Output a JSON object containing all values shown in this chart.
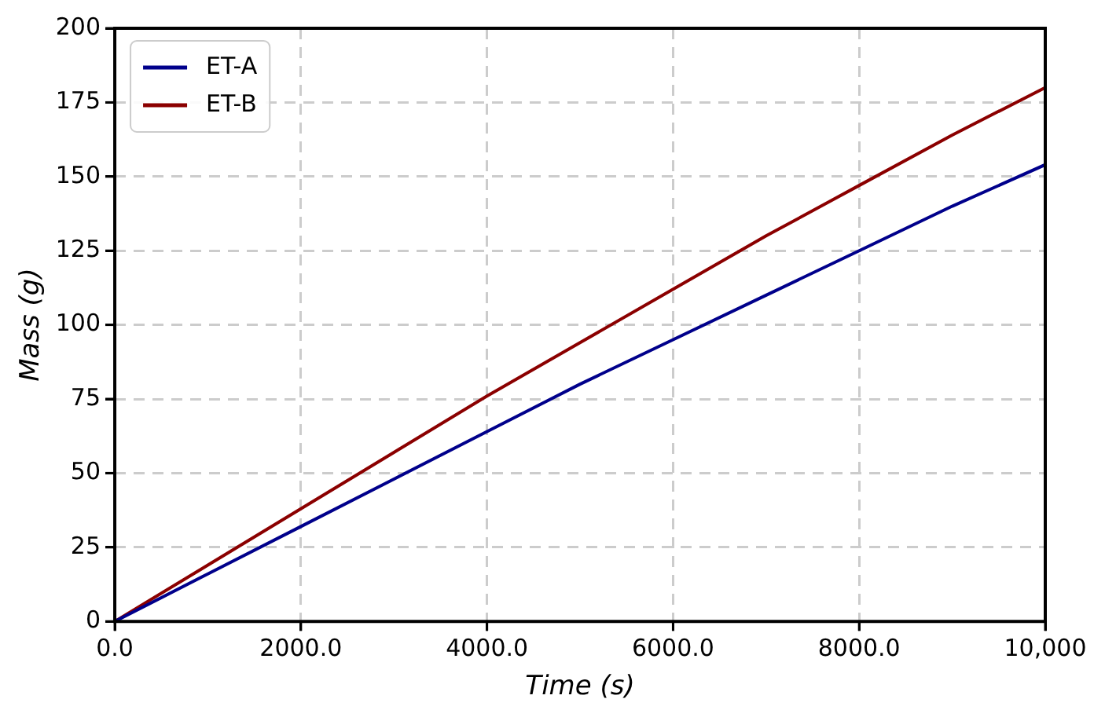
{
  "chart_data": {
    "type": "line",
    "xlabel": "Time (s)",
    "ylabel": "Mass (g)",
    "x": [
      0,
      1000,
      2000,
      3000,
      4000,
      5000,
      6000,
      7000,
      8000,
      9000,
      10000
    ],
    "series": [
      {
        "name": "ET-A",
        "color": "#00008b",
        "values": [
          0,
          16,
          32,
          48,
          64,
          80,
          95,
          110,
          125,
          140,
          154
        ]
      },
      {
        "name": "ET-B",
        "color": "#8b0000",
        "values": [
          0,
          19,
          38,
          57,
          76,
          94,
          112,
          130,
          147,
          164,
          180
        ]
      }
    ],
    "xlim": [
      0,
      10000
    ],
    "xticks": [
      {
        "value": 0,
        "label": "0.0"
      },
      {
        "value": 2000,
        "label": "2000.0"
      },
      {
        "value": 4000,
        "label": "4000.0"
      },
      {
        "value": 6000,
        "label": "6000.0"
      },
      {
        "value": 8000,
        "label": "8000.0"
      },
      {
        "value": 10000,
        "label": "10,000"
      }
    ],
    "ylim": [
      0,
      200
    ],
    "yticks": [
      0,
      25,
      50,
      75,
      100,
      125,
      150,
      175,
      200
    ],
    "grid": true,
    "legend": "top left",
    "marker": "none",
    "line_style": "solid"
  }
}
